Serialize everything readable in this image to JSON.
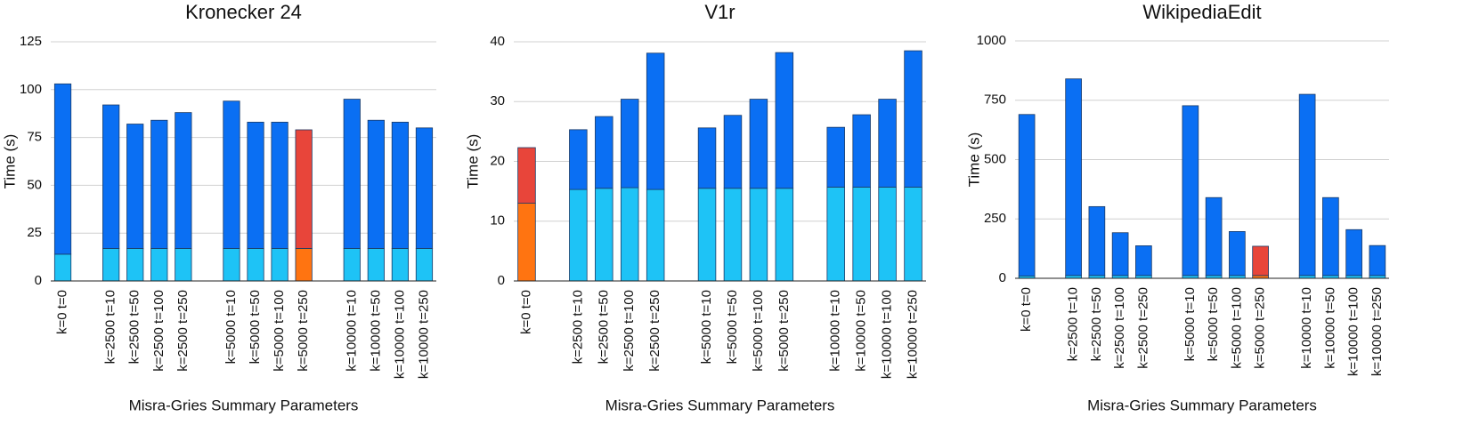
{
  "chart_data": [
    {
      "type": "bar",
      "stacked": true,
      "title": "Kronecker 24",
      "ylabel": "Time (s)",
      "xlabel": "Misra-Gries Summary Parameters",
      "categories": [
        "k=0 t=0",
        null,
        "k=2500 t=10",
        "k=2500 t=50",
        "k=2500 t=100",
        "k=2500 t=250",
        null,
        "k=5000 t=10",
        "k=5000 t=50",
        "k=5000 t=100",
        "k=5000 t=250",
        null,
        "k=10000 t=10",
        "k=10000 t=50",
        "k=10000 t=100",
        "k=10000 t=250"
      ],
      "series": [
        {
          "colors": [
            "#1ec3f6",
            "#1ec3f6",
            "#1ec3f6",
            "#1ec3f6",
            "#1ec3f6",
            "#1ec3f6",
            "#1ec3f6",
            "#1ec3f6",
            "#1ec3f6",
            "#1ec3f6",
            "#ff7411",
            "#1ec3f6",
            "#1ec3f6",
            "#1ec3f6",
            "#1ec3f6",
            "#1ec3f6"
          ],
          "values": [
            14,
            0,
            17,
            17,
            17,
            17,
            0,
            17,
            17,
            17,
            17,
            0,
            17,
            17,
            17,
            17
          ]
        },
        {
          "colors": [
            "#0a6ff3",
            "#0a6ff3",
            "#0a6ff3",
            "#0a6ff3",
            "#0a6ff3",
            "#0a6ff3",
            "#0a6ff3",
            "#0a6ff3",
            "#0a6ff3",
            "#0a6ff3",
            "#e8453a",
            "#0a6ff3",
            "#0a6ff3",
            "#0a6ff3",
            "#0a6ff3",
            "#0a6ff3"
          ],
          "values": [
            89,
            0,
            75,
            65,
            67,
            71,
            0,
            77,
            66,
            66,
            62,
            0,
            78,
            67,
            66,
            63
          ]
        }
      ],
      "ylim": [
        0,
        125
      ],
      "yticks": [
        0,
        25,
        50,
        75,
        100,
        125
      ],
      "grid": true
    },
    {
      "type": "bar",
      "stacked": true,
      "title": "V1r",
      "ylabel": "Time (s)",
      "xlabel": "Misra-Gries Summary Parameters",
      "categories": [
        "k=0 t=0",
        null,
        "k=2500 t=10",
        "k=2500 t=50",
        "k=2500 t=100",
        "k=2500 t=250",
        null,
        "k=5000 t=10",
        "k=5000 t=50",
        "k=5000 t=100",
        "k=5000 t=250",
        null,
        "k=10000 t=10",
        "k=10000 t=50",
        "k=10000 t=100",
        "k=10000 t=250"
      ],
      "series": [
        {
          "colors": [
            "#ff7411",
            "#1ec3f6",
            "#1ec3f6",
            "#1ec3f6",
            "#1ec3f6",
            "#1ec3f6",
            "#1ec3f6",
            "#1ec3f6",
            "#1ec3f6",
            "#1ec3f6",
            "#1ec3f6",
            "#1ec3f6",
            "#1ec3f6",
            "#1ec3f6",
            "#1ec3f6",
            "#1ec3f6"
          ],
          "values": [
            13,
            0,
            15.3,
            15.5,
            15.6,
            15.3,
            0,
            15.5,
            15.5,
            15.5,
            15.5,
            0,
            15.7,
            15.7,
            15.7,
            15.7
          ]
        },
        {
          "colors": [
            "#e8453a",
            "#0a6ff3",
            "#0a6ff3",
            "#0a6ff3",
            "#0a6ff3",
            "#0a6ff3",
            "#0a6ff3",
            "#0a6ff3",
            "#0a6ff3",
            "#0a6ff3",
            "#0a6ff3",
            "#0a6ff3",
            "#0a6ff3",
            "#0a6ff3",
            "#0a6ff3",
            "#0a6ff3"
          ],
          "values": [
            9.3,
            0,
            10,
            12,
            14.8,
            22.8,
            0,
            10.1,
            12.2,
            14.9,
            22.7,
            0,
            10,
            12.1,
            14.7,
            22.8
          ]
        }
      ],
      "ylim": [
        0,
        40
      ],
      "yticks": [
        0,
        10,
        20,
        30,
        40
      ],
      "grid": true
    },
    {
      "type": "bar",
      "stacked": true,
      "title": "WikipediaEdit",
      "ylabel": "Time (s)",
      "xlabel": "Misra-Gries Summary Parameters",
      "categories": [
        "k=0 t=0",
        null,
        "k=2500 t=10",
        "k=2500 t=50",
        "k=2500 t=100",
        "k=2500 t=250",
        null,
        "k=5000 t=10",
        "k=5000 t=50",
        "k=5000 t=100",
        "k=5000 t=250",
        null,
        "k=10000 t=10",
        "k=10000 t=50",
        "k=10000 t=100",
        "k=10000 t=250"
      ],
      "series": [
        {
          "colors": [
            "#1ec3f6",
            "#1ec3f6",
            "#1ec3f6",
            "#1ec3f6",
            "#1ec3f6",
            "#1ec3f6",
            "#1ec3f6",
            "#1ec3f6",
            "#1ec3f6",
            "#1ec3f6",
            "#ff7411",
            "#1ec3f6",
            "#1ec3f6",
            "#1ec3f6",
            "#1ec3f6",
            "#1ec3f6"
          ],
          "values": [
            10,
            0,
            12,
            12,
            12,
            12,
            0,
            12,
            12,
            12,
            12,
            0,
            12,
            12,
            12,
            12
          ]
        },
        {
          "colors": [
            "#0a6ff3",
            "#0a6ff3",
            "#0a6ff3",
            "#0a6ff3",
            "#0a6ff3",
            "#0a6ff3",
            "#0a6ff3",
            "#0a6ff3",
            "#0a6ff3",
            "#0a6ff3",
            "#e8453a",
            "#0a6ff3",
            "#0a6ff3",
            "#0a6ff3",
            "#0a6ff3",
            "#0a6ff3"
          ],
          "values": [
            680,
            0,
            828,
            290,
            180,
            125,
            0,
            715,
            328,
            185,
            123,
            0,
            763,
            328,
            193,
            126
          ]
        }
      ],
      "ylim": [
        0,
        1000
      ],
      "yticks": [
        0,
        250,
        500,
        750,
        1000
      ],
      "grid": true
    }
  ]
}
